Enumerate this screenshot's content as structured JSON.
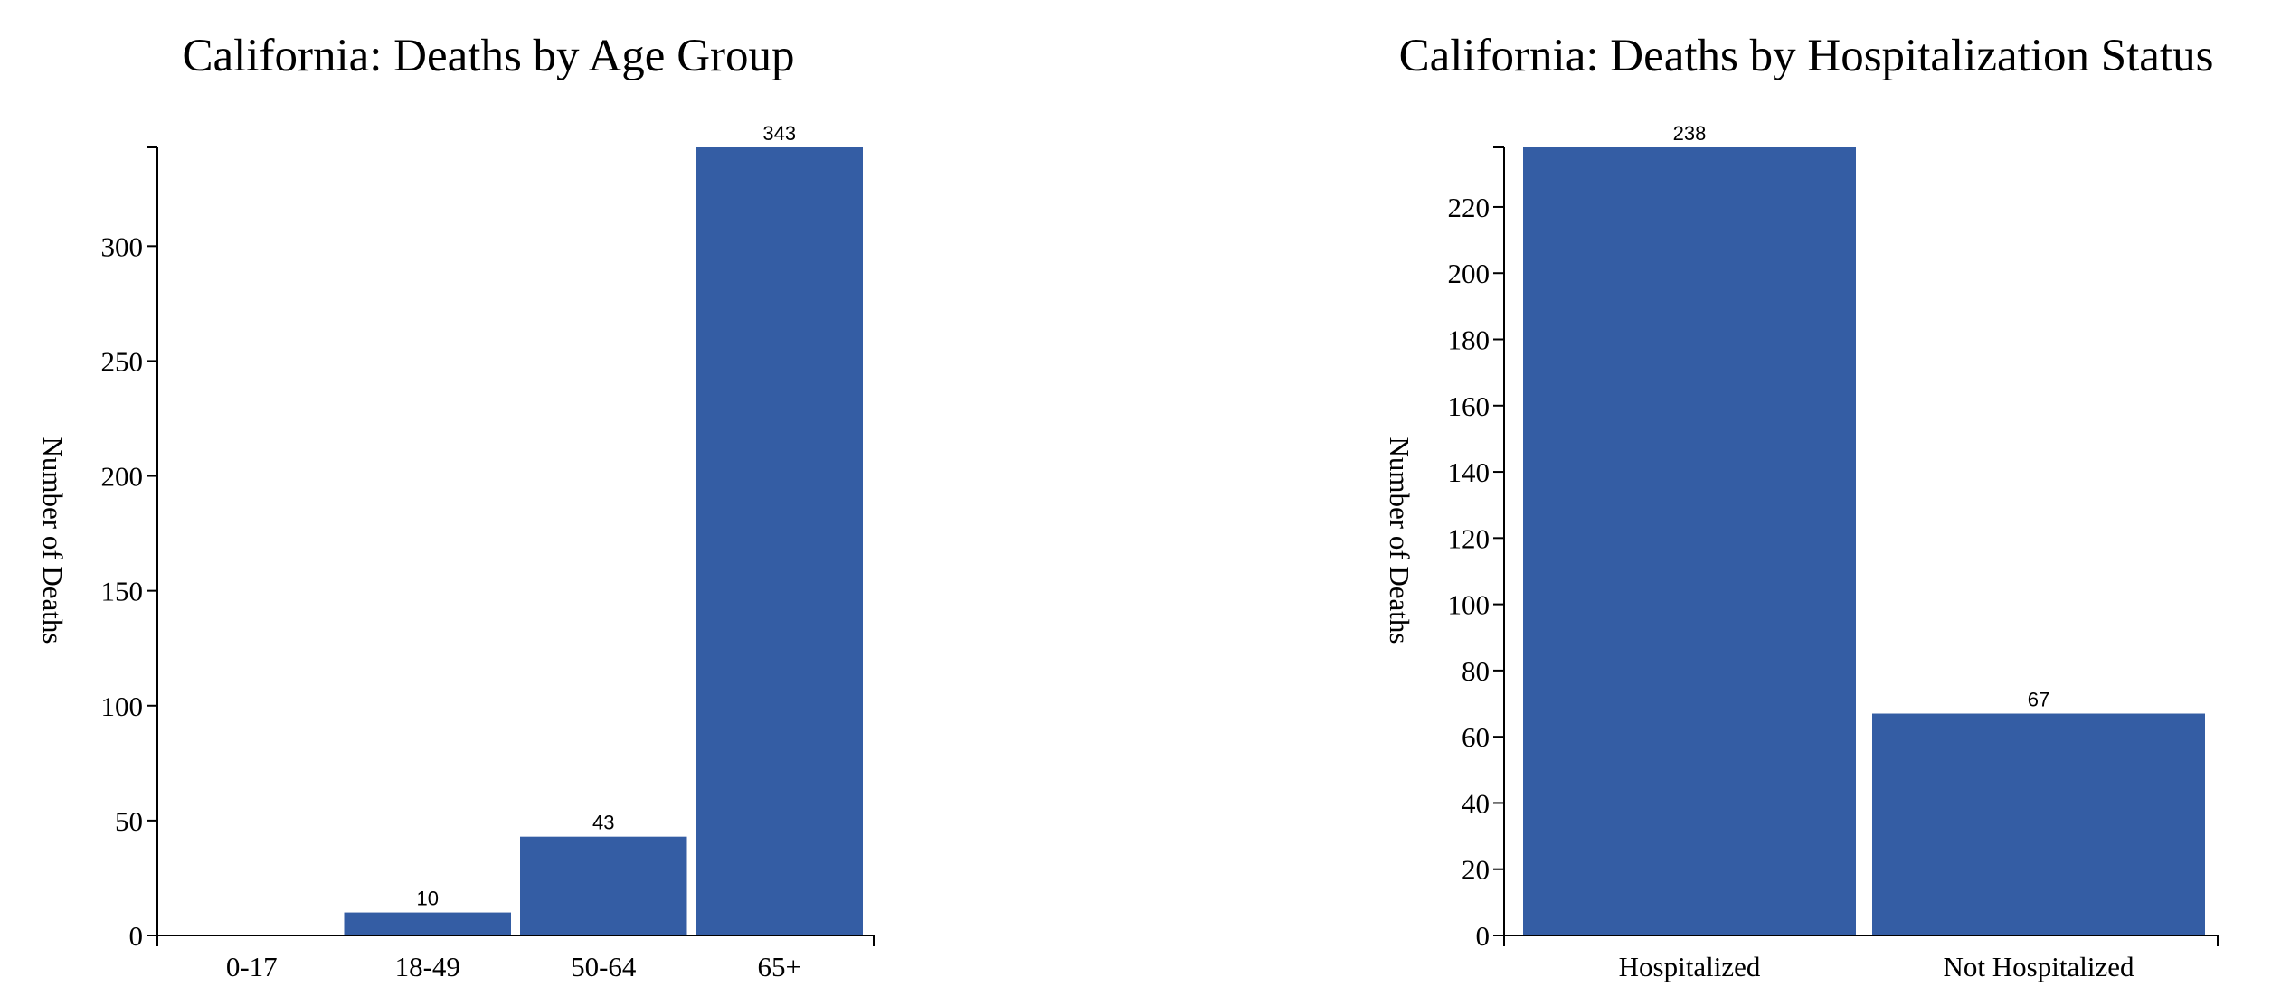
{
  "colors": {
    "bar": "#345da4",
    "axis": "#000000",
    "background": "#ffffff"
  },
  "chart_data": [
    {
      "type": "bar",
      "title": "California: Deaths by Age Group",
      "xlabel": "",
      "ylabel": "Number of Deaths",
      "categories": [
        "0-17",
        "18-49",
        "50-64",
        "65+"
      ],
      "values": [
        0,
        10,
        43,
        343
      ],
      "data_labels": [
        "",
        "10",
        "43",
        "343"
      ],
      "ylim": [
        0,
        343
      ],
      "yticks": [
        0,
        50,
        100,
        150,
        200,
        250,
        300
      ],
      "ytick_labels": [
        "0",
        "50",
        "100",
        "150",
        "200",
        "250",
        "300"
      ],
      "grid": false,
      "legend": "none"
    },
    {
      "type": "bar",
      "title": "California: Deaths by Hospitalization Status",
      "xlabel": "",
      "ylabel": "Number of Deaths",
      "categories": [
        "Hospitalized",
        "Not Hospitalized"
      ],
      "values": [
        238,
        67
      ],
      "data_labels": [
        "238",
        "67"
      ],
      "ylim": [
        0,
        238
      ],
      "yticks": [
        0,
        20,
        40,
        60,
        80,
        100,
        120,
        140,
        160,
        180,
        200,
        220
      ],
      "ytick_labels": [
        "0",
        "20",
        "40",
        "60",
        "80",
        "100",
        "120",
        "140",
        "160",
        "180",
        "200",
        "220"
      ],
      "grid": false,
      "legend": "none"
    }
  ]
}
